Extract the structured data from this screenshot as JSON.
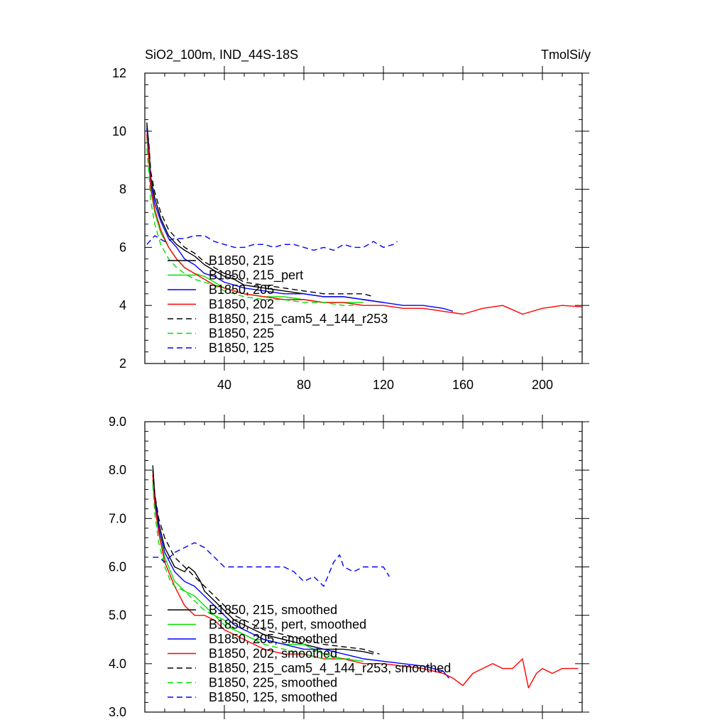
{
  "header": {
    "left_title": "SiO2_100m, IND_44S-18S",
    "right_title": "TmolSi/y"
  },
  "chart_data": [
    {
      "type": "line",
      "panel": "raw",
      "xlim": [
        0,
        220
      ],
      "ylim": [
        2,
        12
      ],
      "x_ticks": [
        40,
        80,
        120,
        160,
        200
      ],
      "x_tick_labels": [
        "40",
        "80",
        "120",
        "160",
        "200"
      ],
      "y_ticks": [
        2,
        4,
        6,
        8,
        10,
        12
      ],
      "y_tick_labels": [
        "2",
        "4",
        "6",
        "8",
        "10",
        "12"
      ],
      "legend_position": "bottom-left",
      "series": [
        {
          "name": "B1850, 215",
          "color": "#000000",
          "dash": "solid",
          "x": [
            1,
            2,
            3,
            5,
            8,
            12,
            16,
            20,
            25,
            30,
            35,
            40,
            45,
            50,
            60,
            70,
            80,
            90,
            100,
            110,
            120
          ],
          "y": [
            10.3,
            9.5,
            8.4,
            7.7,
            7.0,
            6.4,
            6.1,
            5.9,
            5.7,
            5.4,
            5.2,
            5.0,
            4.9,
            4.7,
            4.6,
            4.5,
            4.4,
            4.3,
            4.3,
            4.2,
            4.1
          ]
        },
        {
          "name": "B1850, 215_pert",
          "color": "#00e000",
          "dash": "solid",
          "x": [
            1,
            2,
            3,
            5,
            8,
            12,
            16,
            20,
            25,
            30,
            35,
            40,
            45,
            50,
            60,
            70,
            80,
            90,
            100,
            110
          ],
          "y": [
            9.8,
            9.0,
            8.0,
            7.2,
            6.5,
            6.0,
            5.6,
            5.3,
            5.1,
            5.0,
            4.8,
            4.6,
            4.5,
            4.4,
            4.3,
            4.3,
            4.2,
            4.1,
            4.1,
            4.1
          ]
        },
        {
          "name": "B1850, 205",
          "color": "#0000ff",
          "dash": "solid",
          "x": [
            1,
            2,
            3,
            5,
            8,
            12,
            16,
            20,
            25,
            30,
            35,
            40,
            45,
            50,
            60,
            70,
            80,
            90,
            100,
            110,
            120,
            130,
            140,
            150,
            155
          ],
          "y": [
            10.1,
            9.3,
            8.2,
            7.5,
            6.9,
            6.3,
            6.0,
            5.6,
            5.4,
            5.1,
            5.0,
            4.8,
            4.7,
            4.6,
            4.5,
            4.4,
            4.4,
            4.3,
            4.3,
            4.2,
            4.1,
            4.0,
            4.0,
            3.9,
            3.8
          ]
        },
        {
          "name": "B1850, 202",
          "color": "#ff0000",
          "dash": "solid",
          "x": [
            1,
            2,
            3,
            5,
            8,
            12,
            16,
            20,
            25,
            30,
            35,
            40,
            45,
            50,
            60,
            70,
            80,
            90,
            100,
            110,
            120,
            130,
            140,
            150,
            160,
            170,
            180,
            190,
            200,
            210,
            220
          ],
          "y": [
            9.9,
            9.1,
            8.0,
            7.3,
            6.6,
            6.0,
            5.6,
            5.3,
            5.1,
            4.9,
            4.7,
            4.6,
            4.5,
            4.4,
            4.3,
            4.2,
            4.2,
            4.1,
            4.1,
            4.0,
            4.0,
            3.9,
            3.9,
            3.8,
            3.7,
            3.9,
            4.0,
            3.7,
            3.9,
            4.0,
            3.95
          ]
        },
        {
          "name": "B1850, 215_cam5_4_144_r253",
          "color": "#000000",
          "dash": "dashed",
          "x": [
            1,
            2,
            3,
            5,
            8,
            12,
            16,
            20,
            25,
            30,
            35,
            40,
            45,
            50,
            60,
            70,
            80,
            90,
            100,
            110,
            115
          ],
          "y": [
            10.2,
            9.6,
            8.6,
            7.9,
            7.2,
            6.6,
            6.3,
            6.0,
            5.8,
            5.5,
            5.3,
            5.1,
            5.0,
            4.8,
            4.7,
            4.6,
            4.5,
            4.4,
            4.4,
            4.4,
            4.3
          ]
        },
        {
          "name": "B1850, 225",
          "color": "#00e000",
          "dash": "dashed",
          "x": [
            1,
            2,
            3,
            5,
            8,
            12,
            16,
            20,
            25,
            30,
            35,
            40,
            45,
            50,
            60,
            70,
            80,
            90,
            100,
            105
          ],
          "y": [
            9.4,
            8.6,
            7.6,
            6.8,
            6.1,
            5.6,
            5.3,
            5.1,
            4.9,
            4.8,
            4.7,
            4.5,
            4.4,
            4.3,
            4.2,
            4.2,
            4.1,
            4.1,
            4.0,
            4.0
          ]
        },
        {
          "name": "B1850, 125",
          "color": "#0000ff",
          "dash": "dashed",
          "x": [
            1,
            5,
            10,
            15,
            20,
            25,
            30,
            35,
            40,
            45,
            50,
            55,
            60,
            65,
            70,
            75,
            80,
            85,
            90,
            95,
            100,
            105,
            110,
            115,
            120,
            125,
            127
          ],
          "y": [
            6.1,
            6.4,
            6.2,
            6.3,
            6.3,
            6.4,
            6.4,
            6.2,
            6.1,
            6.0,
            6.0,
            6.1,
            6.1,
            6.0,
            6.1,
            6.1,
            6.0,
            5.9,
            6.0,
            5.9,
            6.1,
            6.0,
            6.0,
            6.2,
            6.0,
            6.1,
            6.2
          ]
        }
      ]
    },
    {
      "type": "line",
      "panel": "smoothed",
      "xlim": [
        0,
        220
      ],
      "ylim": [
        3.0,
        9.0
      ],
      "x_ticks": [
        40,
        80,
        120,
        160,
        200
      ],
      "y_ticks": [
        3.0,
        4.0,
        5.0,
        6.0,
        7.0,
        8.0,
        9.0
      ],
      "y_tick_labels": [
        "3.0",
        "4.0",
        "5.0",
        "6.0",
        "7.0",
        "8.0",
        "9.0"
      ],
      "legend_position": "bottom-left",
      "series": [
        {
          "name": "B1850, 215, smoothed",
          "color": "#000000",
          "dash": "solid",
          "x": [
            4,
            5,
            7,
            10,
            15,
            20,
            22,
            25,
            28,
            30,
            35,
            40,
            45,
            50,
            55,
            60,
            70,
            80,
            90,
            100,
            110,
            115
          ],
          "y": [
            8.1,
            7.5,
            6.9,
            6.4,
            6.0,
            5.9,
            6.0,
            5.9,
            5.7,
            5.5,
            5.3,
            5.1,
            4.9,
            4.8,
            4.7,
            4.6,
            4.5,
            4.4,
            4.3,
            4.3,
            4.25,
            4.2
          ]
        },
        {
          "name": "B1850, 215, pert, smoothed",
          "color": "#00e000",
          "dash": "solid",
          "x": [
            4,
            5,
            7,
            10,
            15,
            20,
            25,
            30,
            35,
            40,
            45,
            50,
            55,
            60,
            70,
            80,
            90,
            100,
            110
          ],
          "y": [
            7.8,
            7.3,
            6.7,
            6.2,
            5.7,
            5.5,
            5.4,
            5.2,
            5.0,
            4.9,
            4.7,
            4.6,
            4.5,
            4.5,
            4.4,
            4.4,
            4.2,
            4.1,
            4.05
          ]
        },
        {
          "name": "B1850, 205, smoothed",
          "color": "#0000ff",
          "dash": "solid",
          "x": [
            4,
            5,
            7,
            10,
            15,
            20,
            25,
            30,
            35,
            40,
            45,
            50,
            55,
            60,
            70,
            80,
            90,
            100,
            110,
            120,
            130,
            140,
            150,
            153
          ],
          "y": [
            7.9,
            7.4,
            6.8,
            6.3,
            5.9,
            5.7,
            5.6,
            5.4,
            5.2,
            5.0,
            4.8,
            4.7,
            4.6,
            4.5,
            4.4,
            4.3,
            4.3,
            4.2,
            4.1,
            4.05,
            4.0,
            3.95,
            3.85,
            3.7
          ]
        },
        {
          "name": "B1850, 202, smoothed",
          "color": "#ff0000",
          "dash": "solid",
          "x": [
            4,
            5,
            7,
            10,
            15,
            20,
            25,
            30,
            35,
            40,
            45,
            50,
            55,
            60,
            70,
            80,
            90,
            100,
            110,
            120,
            130,
            140,
            150,
            155,
            160,
            165,
            170,
            175,
            180,
            185,
            190,
            193,
            197,
            200,
            205,
            210,
            215,
            218
          ],
          "y": [
            7.9,
            7.3,
            6.7,
            6.1,
            5.6,
            5.2,
            5.0,
            5.0,
            4.9,
            4.7,
            4.6,
            4.5,
            4.4,
            4.3,
            4.2,
            4.2,
            4.1,
            4.1,
            4.0,
            4.0,
            3.95,
            3.9,
            3.8,
            3.7,
            3.55,
            3.8,
            3.9,
            4.0,
            3.9,
            3.9,
            4.1,
            3.5,
            3.8,
            3.9,
            3.8,
            3.9,
            3.9,
            3.9
          ]
        },
        {
          "name": "B1850, 215_cam5_4_144_r253, smoothed",
          "color": "#000000",
          "dash": "dashed",
          "x": [
            4,
            5,
            7,
            10,
            15,
            20,
            25,
            30,
            35,
            40,
            45,
            50,
            55,
            60,
            70,
            80,
            90,
            100,
            110,
            118
          ],
          "y": [
            8.0,
            7.5,
            7.0,
            6.6,
            6.2,
            6.0,
            5.8,
            5.6,
            5.4,
            5.2,
            5.0,
            4.9,
            4.8,
            4.7,
            4.6,
            4.5,
            4.4,
            4.35,
            4.3,
            4.2
          ]
        },
        {
          "name": "B1850, 225, smoothed",
          "color": "#00e000",
          "dash": "dashed",
          "x": [
            4,
            5,
            7,
            10,
            13,
            15,
            20,
            25,
            30,
            35,
            40,
            45,
            50,
            55,
            60,
            70,
            80,
            90,
            100,
            105
          ],
          "y": [
            7.7,
            7.1,
            6.5,
            6.0,
            5.7,
            5.6,
            5.5,
            5.3,
            5.1,
            5.0,
            4.8,
            4.7,
            4.6,
            4.5,
            4.4,
            4.3,
            4.2,
            4.1,
            4.1,
            4.1
          ]
        },
        {
          "name": "B1850, 125, smoothed",
          "color": "#0000ff",
          "dash": "dashed",
          "x": [
            4,
            7,
            10,
            15,
            20,
            25,
            30,
            35,
            40,
            45,
            50,
            55,
            60,
            65,
            70,
            75,
            80,
            85,
            90,
            95,
            98,
            100,
            105,
            110,
            115,
            120,
            123
          ],
          "y": [
            6.2,
            6.2,
            6.1,
            6.3,
            6.4,
            6.5,
            6.4,
            6.2,
            6.0,
            6.0,
            6.0,
            6.0,
            6.0,
            6.0,
            6.0,
            5.9,
            5.7,
            5.8,
            5.6,
            6.1,
            6.25,
            6.0,
            5.9,
            6.0,
            6.0,
            6.0,
            5.8
          ]
        }
      ]
    }
  ]
}
